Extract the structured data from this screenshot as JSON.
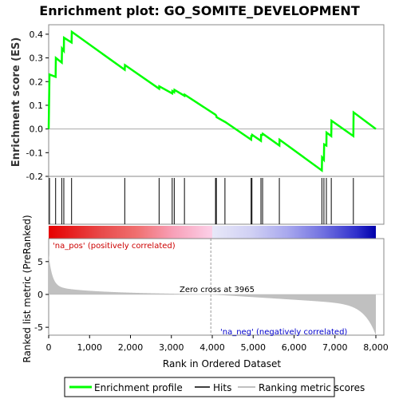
{
  "title": "Enrichment plot: GO_SOMITE_DEVELOPMENT",
  "es_axis_label": "Enrichment score (ES)",
  "metric_axis_label": "Ranked list metric (PreRanked)",
  "x_axis_label": "Rank in Ordered Dataset",
  "zero_cross_label": "Zero cross at 3965",
  "pos_label": "'na_pos' (positively correlated)",
  "neg_label": "'na_neg' (negatively correlated)",
  "legend": {
    "enrichment": "Enrichment profile",
    "hits": "Hits",
    "ranking": "Ranking metric scores"
  },
  "colors": {
    "enrichment_line": "#00ff00",
    "hits": "#000000",
    "ranking": "#c0c0c0",
    "positive": "#ff0000",
    "negative": "#0000cc"
  },
  "chart_data": {
    "type": "line",
    "n_genes": 8000,
    "zero_cross": 3965,
    "x_ticks": [
      "0",
      "1,000",
      "2,000",
      "3,000",
      "4,000",
      "5,000",
      "6,000",
      "7,000",
      "8,000"
    ],
    "es_ticks": [
      "-0.2",
      "-0.1",
      "0.0",
      "0.1",
      "0.2",
      "0.3",
      "0.4"
    ],
    "es_ylim": [
      -0.2,
      0.44
    ],
    "metric_ticks": [
      "-5",
      "0",
      "5"
    ],
    "metric_ylim": [
      -6.2,
      8.5
    ],
    "hits": [
      20,
      170,
      320,
      370,
      560,
      1860,
      2700,
      3020,
      3070,
      3320,
      4080,
      4100,
      4310,
      4950,
      4970,
      5190,
      5230,
      5640,
      6680,
      6730,
      6790,
      6910,
      7450
    ],
    "es_profile": [
      [
        0,
        0.0
      ],
      [
        20,
        0.23
      ],
      [
        170,
        0.22
      ],
      [
        175,
        0.3
      ],
      [
        320,
        0.28
      ],
      [
        325,
        0.34
      ],
      [
        370,
        0.33
      ],
      [
        375,
        0.385
      ],
      [
        560,
        0.365
      ],
      [
        565,
        0.41
      ],
      [
        1860,
        0.25
      ],
      [
        1865,
        0.27
      ],
      [
        2700,
        0.17
      ],
      [
        2705,
        0.18
      ],
      [
        3020,
        0.15
      ],
      [
        3025,
        0.16
      ],
      [
        3070,
        0.155
      ],
      [
        3075,
        0.165
      ],
      [
        3320,
        0.14
      ],
      [
        3325,
        0.145
      ],
      [
        4080,
        0.06
      ],
      [
        4100,
        0.055
      ],
      [
        4105,
        0.05
      ],
      [
        4310,
        0.03
      ],
      [
        4315,
        0.03
      ],
      [
        4950,
        -0.045
      ],
      [
        4955,
        -0.03
      ],
      [
        4970,
        -0.03
      ],
      [
        4975,
        -0.025
      ],
      [
        5190,
        -0.05
      ],
      [
        5195,
        -0.025
      ],
      [
        5230,
        -0.025
      ],
      [
        5235,
        -0.02
      ],
      [
        5640,
        -0.07
      ],
      [
        5645,
        -0.045
      ],
      [
        6680,
        -0.175
      ],
      [
        6685,
        -0.12
      ],
      [
        6730,
        -0.13
      ],
      [
        6735,
        -0.065
      ],
      [
        6790,
        -0.07
      ],
      [
        6795,
        -0.015
      ],
      [
        6910,
        -0.03
      ],
      [
        6915,
        0.035
      ],
      [
        7450,
        -0.03
      ],
      [
        7455,
        0.07
      ],
      [
        8000,
        0.0
      ]
    ]
  }
}
